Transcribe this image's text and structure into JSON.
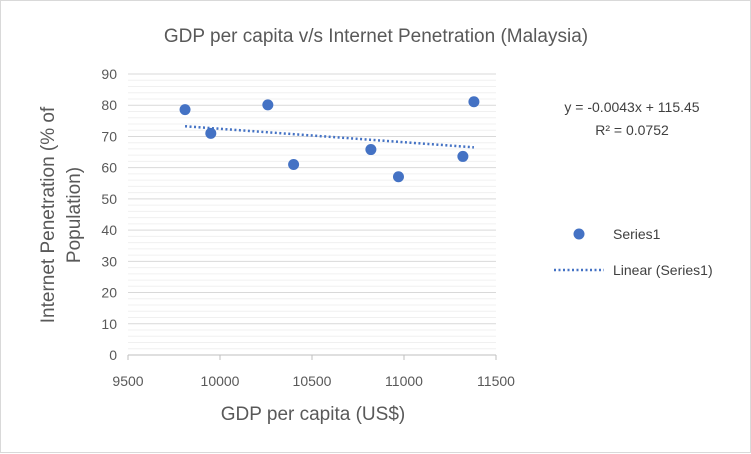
{
  "chart_data": {
    "type": "scatter",
    "title": "GDP per capita v/s Internet Penetration (Malaysia)",
    "xlabel": "GDP per capita (US$)",
    "ylabel_lines": [
      "Internet Penetration (% of",
      "Population)"
    ],
    "xlim": [
      9500,
      11500
    ],
    "ylim": [
      0,
      90
    ],
    "xticks": [
      9500,
      10000,
      10500,
      11000,
      11500
    ],
    "yticks": [
      0,
      10,
      20,
      30,
      40,
      50,
      60,
      70,
      80,
      90
    ],
    "grid": true,
    "series": [
      {
        "name": "Series1",
        "color": "#4472c4",
        "points": [
          {
            "x": 9810,
            "y": 78.6
          },
          {
            "x": 9950,
            "y": 71.0
          },
          {
            "x": 10260,
            "y": 80.1
          },
          {
            "x": 10400,
            "y": 61.0
          },
          {
            "x": 10820,
            "y": 65.8
          },
          {
            "x": 10970,
            "y": 57.1
          },
          {
            "x": 11320,
            "y": 63.6
          },
          {
            "x": 11380,
            "y": 81.1
          }
        ]
      }
    ],
    "trendline": {
      "name": "Linear (Series1)",
      "color": "#4472c4",
      "slope": -0.0043,
      "intercept": 115.45,
      "x_range": [
        9810,
        11380
      ]
    },
    "equation_label": "y = -0.0043x + 115.45",
    "r2_label": "R² = 0.0752",
    "legend_position": "right"
  }
}
